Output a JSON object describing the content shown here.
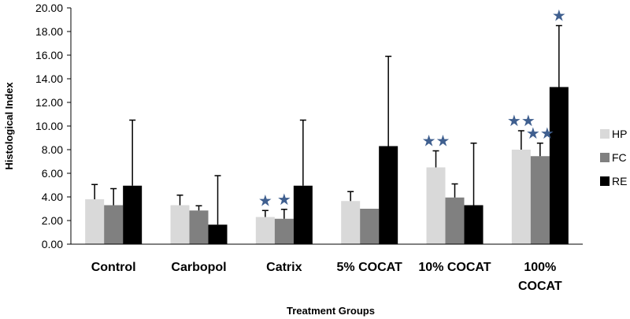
{
  "chart_data": {
    "type": "bar",
    "title": "",
    "xlabel": "Treatment Groups",
    "ylabel": "Histological Index",
    "ylim": [
      0,
      20
    ],
    "yticks": [
      "0.00",
      "2.00",
      "4.00",
      "6.00",
      "8.00",
      "10.00",
      "12.00",
      "14.00",
      "16.00",
      "18.00",
      "20.00"
    ],
    "categories": [
      [
        "Control"
      ],
      [
        "Carbopol"
      ],
      [
        "Catrix"
      ],
      [
        "5% COCAT"
      ],
      [
        "10% COCAT"
      ],
      [
        "100%",
        "COCAT"
      ]
    ],
    "series": [
      {
        "name": "HP",
        "color": "#d9d9d9",
        "values": [
          3.8,
          3.3,
          2.3,
          3.65,
          6.5,
          8.0
        ],
        "errors": [
          1.25,
          0.85,
          0.55,
          0.8,
          1.4,
          1.6
        ]
      },
      {
        "name": "FC",
        "color": "#808080",
        "values": [
          3.3,
          2.85,
          2.15,
          3.0,
          3.95,
          7.45
        ],
        "errors": [
          1.4,
          0.4,
          0.8,
          0.0,
          1.15,
          1.1
        ]
      },
      {
        "name": "RE",
        "color": "#000000",
        "values": [
          4.95,
          1.65,
          4.95,
          8.3,
          3.3,
          13.3
        ],
        "errors": [
          5.55,
          4.15,
          5.55,
          7.6,
          5.25,
          5.2
        ]
      }
    ],
    "significance_marks": [
      {
        "category": 2,
        "series": 0,
        "label": "★"
      },
      {
        "category": 2,
        "series": 1,
        "label": "★"
      },
      {
        "category": 4,
        "series": 0,
        "label": "★★"
      },
      {
        "category": 5,
        "series": 0,
        "label": "★★"
      },
      {
        "category": 5,
        "series": 1,
        "label": "★★"
      },
      {
        "category": 5,
        "series": 2,
        "label": "★"
      }
    ],
    "star_color": "#3f5f8f",
    "legend_position": "right",
    "grid": false
  }
}
